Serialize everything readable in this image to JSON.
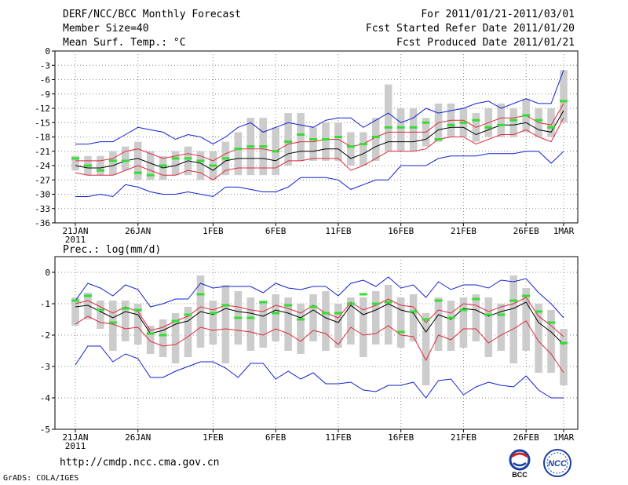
{
  "header": {
    "title": "DERF/NCC/BCC Monthly Forecast",
    "member": "Member Size=40",
    "variable": "Mean Surf. Temp.: °C",
    "period": "For 2011/01/21-2011/03/01",
    "fcst_start": "Fcst Started Refer Date 2011/01/20",
    "fcst_produced": "Fcst Produced Date 2011/01/21"
  },
  "footer": {
    "url": "http://cmdp.ncc.cma.gov.cn",
    "credit": "GrADS: COLA/IGES",
    "logo_bcc": "BCC",
    "logo_ncc": "NCC"
  },
  "colors": {
    "mean": "#000000",
    "spread": "#e0283c",
    "extreme": "#1020d0",
    "obs": "#33dd33",
    "box": "#cccccc",
    "grid": "#888888"
  },
  "chart_data": [
    {
      "type": "line",
      "title": "Mean Surf. Temp.: °C",
      "ylim": [
        -36,
        0
      ],
      "yticks": [
        "0",
        "-3",
        "-6",
        "-9",
        "-12",
        "-15",
        "-18",
        "-21",
        "-24",
        "-27",
        "-30",
        "-33",
        "-36"
      ],
      "ytick_values": [
        0,
        -3,
        -6,
        -9,
        -12,
        -15,
        -18,
        -21,
        -24,
        -27,
        -30,
        -33,
        -36
      ],
      "xlim": [
        1,
        40
      ],
      "xtick_days": [
        1,
        6,
        12,
        17,
        22,
        27,
        32,
        37,
        40
      ],
      "xticks": [
        "21JAN",
        "26JAN",
        "1FEB",
        "6FEB",
        "11FEB",
        "16FEB",
        "21FEB",
        "26FEB",
        "1MAR"
      ],
      "year_label": "2011",
      "series": [
        {
          "name": "max",
          "values": [
            -19.5,
            -19.5,
            -19,
            -19,
            -17.5,
            -16,
            -16.5,
            -17,
            -18.5,
            -17.5,
            -18,
            -19.5,
            -18,
            -16,
            -15,
            -17,
            -16,
            -15,
            -15.5,
            -16,
            -14.5,
            -14,
            -14,
            -16,
            -14.5,
            -13,
            -15,
            -14,
            -12,
            -13,
            -12.5,
            -12,
            -11,
            -10.5,
            -12,
            -11,
            -10,
            -11,
            -11,
            -4
          ]
        },
        {
          "name": "upper",
          "values": [
            -23,
            -23,
            -23,
            -22.5,
            -21,
            -20.5,
            -21.5,
            -22.5,
            -22,
            -21.5,
            -22,
            -23,
            -21.5,
            -20.5,
            -20.5,
            -20.5,
            -21,
            -19.5,
            -19,
            -19,
            -18.5,
            -18.5,
            -20,
            -19.5,
            -18,
            -17,
            -17,
            -17,
            -17,
            -15,
            -14.5,
            -14.5,
            -16,
            -15,
            -14,
            -14,
            -13.5,
            -15,
            -15.5,
            -11
          ]
        },
        {
          "name": "mean",
          "values": [
            -24,
            -24.5,
            -24.5,
            -24,
            -23,
            -22.5,
            -23.5,
            -24.5,
            -24,
            -23,
            -23.5,
            -25,
            -23,
            -22.5,
            -22.5,
            -22.5,
            -23,
            -21.5,
            -21,
            -21,
            -20.5,
            -20.5,
            -22.5,
            -21.5,
            -20,
            -19,
            -19,
            -19,
            -18.5,
            -16.5,
            -16,
            -16,
            -17.5,
            -16.5,
            -15.5,
            -15.5,
            -15,
            -16.5,
            -17,
            -12.5
          ]
        },
        {
          "name": "lower",
          "values": [
            -25.5,
            -26,
            -26,
            -26,
            -25,
            -24,
            -25,
            -26,
            -26,
            -25,
            -25.5,
            -27,
            -25,
            -24.5,
            -24.5,
            -24.5,
            -24.5,
            -23,
            -23,
            -22.5,
            -22.5,
            -22.5,
            -25,
            -24,
            -22.5,
            -21,
            -21,
            -21,
            -20.5,
            -18.5,
            -18,
            -18,
            -19.5,
            -18.5,
            -17.5,
            -17.5,
            -16.5,
            -18,
            -19,
            -14
          ]
        },
        {
          "name": "min",
          "values": [
            -30.5,
            -30.5,
            -30,
            -30.5,
            -28,
            -28.5,
            -29.5,
            -30,
            -30,
            -29.5,
            -30,
            -30.5,
            -28.5,
            -28.5,
            -29,
            -29.5,
            -29.5,
            -28.5,
            -26.5,
            -26.5,
            -26.5,
            -27,
            -29,
            -28,
            -27,
            -27,
            -24,
            -24,
            -24,
            -22.5,
            -22,
            -22,
            -22,
            -21.5,
            -21.5,
            -21.5,
            -21,
            -21,
            -23.5,
            -21
          ]
        }
      ],
      "box_low": [
        -25,
        -26,
        -26,
        -26,
        -25,
        -27,
        -27,
        -27,
        -26,
        -26,
        -27,
        -27,
        -26,
        -26,
        -26,
        -26,
        -26,
        -24,
        -23,
        -23,
        -23,
        -23,
        -24,
        -24,
        -23,
        -21,
        -21,
        -21,
        -20,
        -19,
        -18,
        -18,
        -19,
        -18,
        -18,
        -18,
        -17,
        -18,
        -18,
        -15
      ],
      "box_high": [
        -22,
        -22,
        -22,
        -21,
        -20,
        -19,
        -21,
        -22,
        -21,
        -20,
        -21,
        -21,
        -19,
        -17,
        -14,
        -14,
        -16,
        -13,
        -13,
        -16,
        -15,
        -15,
        -17,
        -17,
        -14,
        -7,
        -12,
        -12,
        -14,
        -11,
        -11,
        -12,
        -13,
        -12,
        -11,
        -12,
        -10,
        -12,
        -12,
        -4
      ],
      "obs": [
        -22.5,
        -24,
        -25,
        -23,
        -23,
        -25.5,
        -26,
        -24,
        -22.5,
        -22.5,
        -23,
        -24,
        -22.5,
        -20.5,
        -20,
        -20,
        -21,
        -19,
        -17.5,
        -18.5,
        -18.5,
        -18,
        -20,
        -19.5,
        -18,
        -16,
        -16,
        -16,
        -15,
        -18.5,
        -15.5,
        -15,
        -14.5,
        -16,
        -15.5,
        -14.5,
        -13.5,
        -14.5,
        -16,
        -10.5
      ]
    },
    {
      "type": "line",
      "title": "Prec.: log(mm/d)",
      "ylim": [
        -5,
        0.5
      ],
      "yticks": [
        "0",
        "-1",
        "-2",
        "-3",
        "-4",
        "-5"
      ],
      "ytick_values": [
        0,
        -1,
        -2,
        -3,
        -4,
        -5
      ],
      "xlim": [
        1,
        40
      ],
      "xtick_days": [
        1,
        6,
        12,
        17,
        22,
        27,
        32,
        37,
        40
      ],
      "xticks": [
        "21JAN",
        "26JAN",
        "1FEB",
        "6FEB",
        "11FEB",
        "16FEB",
        "21FEB",
        "26FEB",
        "1MAR"
      ],
      "year_label": "2011",
      "series": [
        {
          "name": "max",
          "values": [
            -0.9,
            -0.35,
            -0.5,
            -0.75,
            -0.4,
            -0.55,
            -1.1,
            -1.0,
            -0.85,
            -0.85,
            -0.35,
            -0.5,
            -0.45,
            -0.45,
            -0.45,
            -0.65,
            -0.35,
            -0.5,
            -0.55,
            -0.45,
            -0.45,
            -0.75,
            -0.35,
            -0.25,
            -0.45,
            -0.15,
            -0.5,
            -0.4,
            -0.8,
            -0.3,
            -0.55,
            -0.4,
            -0.4,
            -0.5,
            -0.25,
            -0.3,
            -0.2,
            -0.65,
            -1.0,
            -1.45
          ]
        },
        {
          "name": "upper",
          "values": [
            -1.0,
            -0.9,
            -1.1,
            -1.3,
            -1.1,
            -1.25,
            -1.85,
            -1.75,
            -1.55,
            -1.4,
            -1.1,
            -1.2,
            -1.05,
            -1.1,
            -1.2,
            -1.25,
            -1.05,
            -1.15,
            -1.3,
            -1.05,
            -1.3,
            -1.45,
            -0.95,
            -1.2,
            -1.05,
            -0.85,
            -1.05,
            -1.1,
            -1.6,
            -1.2,
            -1.3,
            -1.0,
            -1.05,
            -1.25,
            -1.1,
            -1.0,
            -0.8,
            -1.4,
            -1.7,
            -2.05
          ]
        },
        {
          "name": "mean",
          "values": [
            -1.1,
            -1.05,
            -1.25,
            -1.45,
            -1.25,
            -1.35,
            -1.95,
            -1.85,
            -1.65,
            -1.55,
            -1.25,
            -1.35,
            -1.15,
            -1.25,
            -1.3,
            -1.4,
            -1.2,
            -1.3,
            -1.45,
            -1.2,
            -1.45,
            -1.6,
            -1.05,
            -1.35,
            -1.2,
            -1.0,
            -1.2,
            -1.3,
            -1.9,
            -1.35,
            -1.5,
            -1.15,
            -1.2,
            -1.4,
            -1.25,
            -1.15,
            -0.95,
            -1.6,
            -1.9,
            -2.3
          ]
        },
        {
          "name": "lower",
          "values": [
            -1.65,
            -1.4,
            -1.6,
            -1.65,
            -1.8,
            -1.75,
            -2.2,
            -2.35,
            -2.3,
            -2.05,
            -1.75,
            -1.85,
            -1.8,
            -1.85,
            -1.9,
            -2.0,
            -1.8,
            -1.95,
            -2.2,
            -1.85,
            -1.95,
            -2.3,
            -1.75,
            -2.0,
            -1.95,
            -1.7,
            -2.0,
            -2.05,
            -2.8,
            -2.0,
            -2.15,
            -1.8,
            -1.8,
            -2.25,
            -2.0,
            -1.8,
            -1.55,
            -2.2,
            -2.6,
            -3.2
          ]
        },
        {
          "name": "min",
          "values": [
            -2.95,
            -2.35,
            -2.35,
            -2.85,
            -2.6,
            -2.75,
            -3.35,
            -3.35,
            -3.15,
            -3.0,
            -2.85,
            -2.85,
            -3.05,
            -3.35,
            -2.9,
            -2.9,
            -3.4,
            -3.15,
            -3.4,
            -3.2,
            -3.55,
            -3.55,
            -3.5,
            -3.75,
            -3.8,
            -3.6,
            -3.6,
            -3.5,
            -4.0,
            -3.45,
            -3.4,
            -3.9,
            -3.65,
            -3.5,
            -3.6,
            -3.65,
            -3.3,
            -3.75,
            -4.0,
            -4.0
          ]
        }
      ],
      "box_low": [
        -1.7,
        -1.5,
        -1.8,
        -2.5,
        -2.2,
        -2.3,
        -2.6,
        -2.7,
        -2.9,
        -2.7,
        -2.4,
        -2.3,
        -2.9,
        -2.3,
        -2.5,
        -2.4,
        -2.2,
        -2.5,
        -2.6,
        -2.2,
        -2.5,
        -2.4,
        -2.3,
        -2.7,
        -2.3,
        -2.3,
        -2.4,
        -2.2,
        -3.6,
        -2.5,
        -2.5,
        -2.4,
        -2.2,
        -2.7,
        -2.5,
        -2.9,
        -2.5,
        -3.2,
        -3.2,
        -3.6
      ],
      "box_high": [
        -0.8,
        -0.65,
        -0.9,
        -0.9,
        -0.9,
        -1.0,
        -1.7,
        -1.5,
        -1.3,
        -1.1,
        -0.1,
        -0.9,
        -0.4,
        -0.6,
        -0.8,
        -0.9,
        -0.7,
        -0.8,
        -1.0,
        -0.7,
        -0.6,
        -1.0,
        -0.8,
        -0.8,
        -0.6,
        -0.4,
        -0.8,
        -0.7,
        -1.3,
        -0.8,
        -0.9,
        -0.8,
        -0.7,
        -0.8,
        -1.0,
        -0.1,
        -0.5,
        -1.0,
        -1.2,
        -1.8
      ],
      "obs": [
        -0.9,
        -0.75,
        -1.2,
        -1.6,
        -1.15,
        -1.2,
        -1.95,
        -2.0,
        -1.55,
        -1.35,
        -0.7,
        -1.3,
        -1.05,
        -1.45,
        -1.45,
        -0.95,
        -1.3,
        -1.05,
        -1.5,
        -1.1,
        -1.3,
        -1.3,
        -1.0,
        -0.7,
        -1.0,
        -0.95,
        -1.9,
        -1.25,
        -1.5,
        -0.9,
        -1.45,
        -1.2,
        -0.85,
        -1.35,
        -1.35,
        -0.9,
        -0.75,
        -1.25,
        -1.6,
        -2.25
      ]
    }
  ]
}
